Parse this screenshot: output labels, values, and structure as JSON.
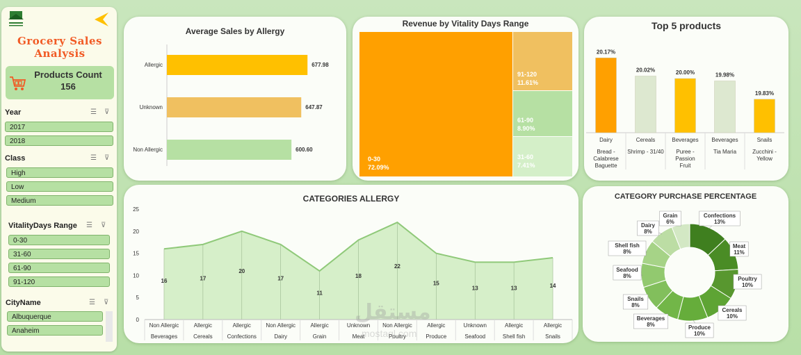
{
  "sidebar": {
    "title_line1": "Grocery Sales",
    "title_line2": "Analysis",
    "products_count_label": "Products Count",
    "products_count_value": "156",
    "slicers": [
      {
        "label": "Year",
        "items": [
          "2017",
          "2018"
        ]
      },
      {
        "label": "Class",
        "items": [
          "High",
          "Low",
          "Medium"
        ]
      },
      {
        "label": "VitalityDays Range",
        "items": [
          "0-30",
          "31-60",
          "61-90",
          "91-120"
        ]
      },
      {
        "label": "CityName",
        "items": [
          "Albuquerque",
          "Anaheim"
        ]
      }
    ]
  },
  "avg_sales": {
    "title": "Average Sales by Allergy",
    "categories": [
      "Allergic",
      "Unknown",
      "Non Allergic"
    ],
    "values": [
      677.98,
      647.87,
      600.6
    ],
    "labels": [
      "677.98",
      "647.87",
      "600.60"
    ],
    "colors": [
      "#ffc000",
      "#f0c060",
      "#b6e0a3"
    ]
  },
  "treemap": {
    "title": "Revenue by Vitality Days Range",
    "cells": [
      {
        "name": "0-30",
        "pct": "72.09%",
        "color": "#ffa000"
      },
      {
        "name": "91-120",
        "pct": "11.61%",
        "color": "#f0c060"
      },
      {
        "name": "61-90",
        "pct": "8.90%",
        "color": "#b6e0a3"
      },
      {
        "name": "31-60",
        "pct": "7.41%",
        "color": "#d4efc8"
      }
    ]
  },
  "top5": {
    "title": "Top 5 products",
    "categories": [
      "Dairy",
      "Cereals",
      "Beverages",
      "Beverages",
      "Snails"
    ],
    "products": [
      "Bread - Calabrese Baguette",
      "Shrimp - 31/40",
      "Puree - Passion Fruit",
      "Tia Maria",
      "Zucchini - Yellow"
    ],
    "values": [
      20.17,
      20.02,
      20.0,
      19.98,
      19.83
    ],
    "labels": [
      "20.17%",
      "20.02%",
      "20.00%",
      "19.98%",
      "19.83%"
    ],
    "colors": [
      "#ffa000",
      "#dde8d0",
      "#ffc000",
      "#dde8d0",
      "#ffc000"
    ]
  },
  "chart_data": [
    {
      "type": "area",
      "title": "CATEGORIES ALLERGY",
      "categories": [
        "Beverages",
        "Cereals",
        "Confections",
        "Dairy",
        "Grain",
        "Meat",
        "Poultry",
        "Produce",
        "Seafood",
        "Shell fish",
        "Snails"
      ],
      "allergy": [
        "Non Allergic",
        "Allergic",
        "Allergic",
        "Non Allergic",
        "Allergic",
        "Unknown",
        "Non Allergic",
        "Allergic",
        "Unknown",
        "Allergic",
        "Allergic"
      ],
      "values": [
        16,
        17,
        20,
        17,
        11,
        18,
        22,
        15,
        13,
        13,
        14
      ],
      "ylim": [
        0,
        25
      ],
      "yticks": [
        0,
        5,
        10,
        15,
        20,
        25
      ],
      "grid": false
    },
    {
      "type": "pie",
      "title": "CATEGORY PURCHASE PERCENTAGE",
      "slices": [
        {
          "name": "Confections",
          "pct": "13%",
          "value": 13,
          "color": "#3f7f1f"
        },
        {
          "name": "Meat",
          "pct": "11%",
          "value": 11,
          "color": "#4a8c25"
        },
        {
          "name": "Poultry",
          "pct": "10%",
          "value": 10,
          "color": "#58972f"
        },
        {
          "name": "Cereals",
          "pct": "10%",
          "value": 10,
          "color": "#5ea434"
        },
        {
          "name": "Produce",
          "pct": "10%",
          "value": 10,
          "color": "#66ad3b"
        },
        {
          "name": "Beverages",
          "pct": "8%",
          "value": 8,
          "color": "#72b648"
        },
        {
          "name": "Snails",
          "pct": "8%",
          "value": 8,
          "color": "#82bf5c"
        },
        {
          "name": "Seafood",
          "pct": "8%",
          "value": 8,
          "color": "#92c96f"
        },
        {
          "name": "Shell fish",
          "pct": "8%",
          "value": 8,
          "color": "#a6d387"
        },
        {
          "name": "Dairy",
          "pct": "8%",
          "value": 8,
          "color": "#bcdda4"
        },
        {
          "name": "Grain",
          "pct": "6%",
          "value": 6,
          "color": "#d3e8c4"
        }
      ]
    }
  ],
  "watermark": {
    "text_ar": "مستقل",
    "text_en": "mostaql.com"
  }
}
